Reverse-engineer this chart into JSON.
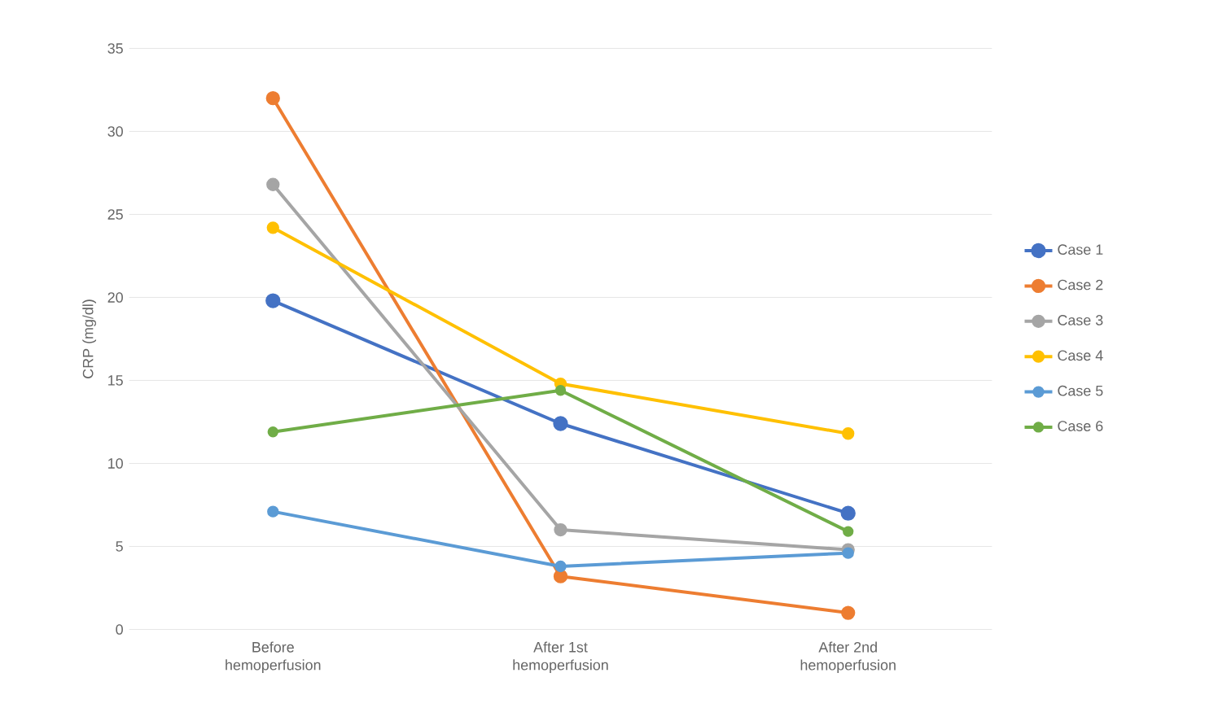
{
  "chart_data": {
    "type": "line",
    "ylabel": "CRP (mg/dl)",
    "categories": [
      "Before hemoperfusion",
      "After 1st hemoperfusion",
      "After 2nd hemoperfusion"
    ],
    "series": [
      {
        "name": "Case 1",
        "color": "#4472c4",
        "values": [
          19.8,
          12.4,
          7.0
        ]
      },
      {
        "name": "Case 2",
        "color": "#ed7d31",
        "values": [
          32.0,
          3.2,
          1.0
        ]
      },
      {
        "name": "Case 3",
        "color": "#a5a5a5",
        "values": [
          26.8,
          6.0,
          4.8
        ]
      },
      {
        "name": "Case 4",
        "color": "#ffc000",
        "values": [
          24.2,
          14.8,
          11.8
        ]
      },
      {
        "name": "Case 5",
        "color": "#5b9bd5",
        "values": [
          7.1,
          3.8,
          4.6
        ]
      },
      {
        "name": "Case 6",
        "color": "#70ad47",
        "values": [
          11.9,
          14.4,
          5.9
        ]
      }
    ],
    "ylim": [
      0,
      35
    ],
    "yticks": [
      0,
      5,
      10,
      15,
      20,
      25,
      30,
      35
    ],
    "grid": "y",
    "legend": "right",
    "marker": "circle",
    "line_style": "solid"
  }
}
